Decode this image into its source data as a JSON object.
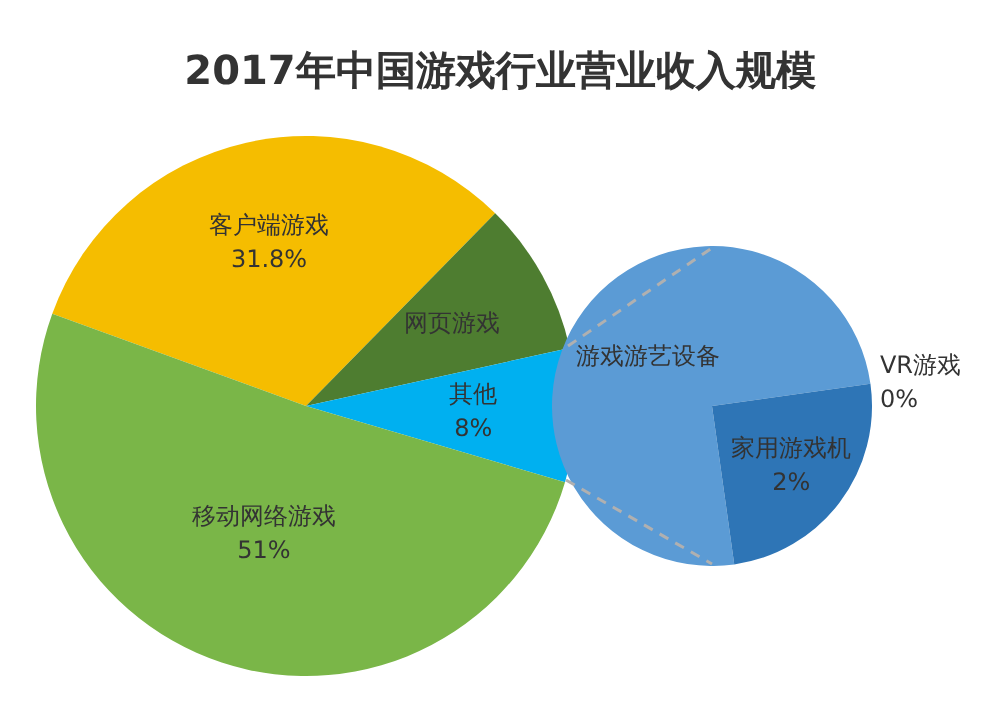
{
  "chart_data": [
    {
      "type": "pie",
      "title": "2017年中国游戏行业营业收入规模",
      "categories": [
        "客户端游戏",
        "网页游戏",
        "其他",
        "移动网络游戏"
      ],
      "values": [
        31.8,
        9.2,
        8,
        51
      ],
      "colors": [
        "#f5bd00",
        "#4e7d30",
        "#00b0f0",
        "#7ab648"
      ],
      "value_labels": [
        "31.8%",
        null,
        "8%",
        "51%"
      ],
      "legend": false
    },
    {
      "type": "pie",
      "categories": [
        "游戏游艺设备",
        "VR游戏",
        "家用游戏机"
      ],
      "values": [
        6,
        0,
        2
      ],
      "colors": [
        "#5b9bd5",
        "#1f4e9a",
        "#2e75b6"
      ],
      "value_labels": [
        null,
        "0%",
        "2%"
      ],
      "legend": false
    }
  ]
}
